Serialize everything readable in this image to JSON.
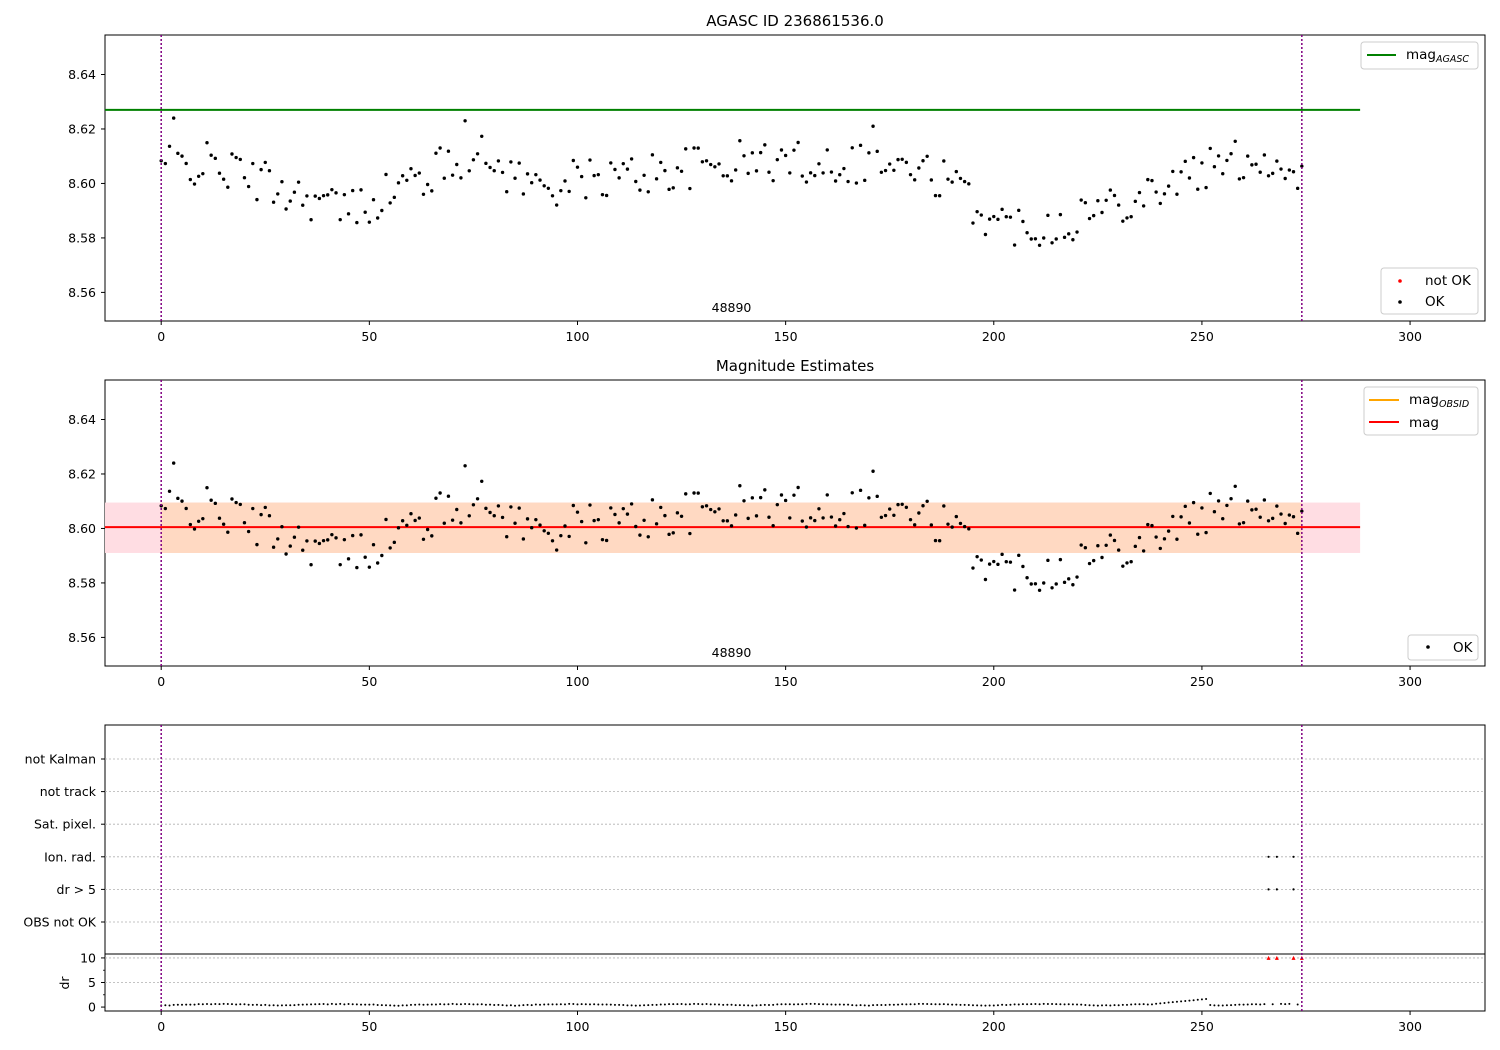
{
  "chart_data": [
    {
      "type": "scatter",
      "title": "AGASC ID 236861536.0",
      "obsid_label": "48890",
      "xlim": [
        -13.5,
        318
      ],
      "ylim": [
        8.5495,
        8.6545
      ],
      "x_ticks": [
        0,
        50,
        100,
        150,
        200,
        250,
        300
      ],
      "y_ticks": [
        8.56,
        8.58,
        8.6,
        8.62,
        8.64
      ],
      "y_tick_labels": [
        "8.56",
        "8.58",
        "8.60",
        "8.62",
        "8.64"
      ],
      "vlines": [
        0,
        274
      ],
      "mag_agasc": 8.627,
      "hline_x_range": [
        -13.5,
        288
      ],
      "legend_top": {
        "label_main": "mag",
        "label_sub": "AGASC"
      },
      "legend_bottom": [
        {
          "label": "not OK",
          "color": "#ff0000"
        },
        {
          "label": "OK",
          "color": "#000000"
        }
      ],
      "colors": {
        "agasc": "#008000",
        "vline": "#800080",
        "ok": "#000000",
        "not_ok": "#ff0000"
      }
    },
    {
      "type": "scatter",
      "title": "Magnitude Estimates",
      "obsid_label": "48890",
      "xlim": [
        -13.5,
        318
      ],
      "ylim": [
        8.5495,
        8.6545
      ],
      "x_ticks": [
        0,
        50,
        100,
        150,
        200,
        250,
        300
      ],
      "y_ticks": [
        8.56,
        8.58,
        8.6,
        8.62,
        8.64
      ],
      "y_tick_labels": [
        "8.56",
        "8.58",
        "8.60",
        "8.62",
        "8.64"
      ],
      "vlines": [
        0,
        274
      ],
      "mag_mean": 8.6005,
      "mag_band": [
        8.591,
        8.6095
      ],
      "obsid_band_x_range": [
        0,
        274
      ],
      "mag_band_x_range": [
        -13.5,
        288
      ],
      "legend_top": [
        {
          "label_main": "mag",
          "label_sub": "OBSID",
          "color": "#ffa500"
        },
        {
          "label_main": "mag",
          "label_sub": "",
          "color": "#ff0000"
        }
      ],
      "legend_bottom": [
        {
          "label": "OK",
          "color": "#000000"
        }
      ],
      "colors": {
        "mean": "#ff0000",
        "band_outer": "#ffdde3",
        "band_inner": "#ffd9c2",
        "vline": "#800080"
      }
    },
    {
      "type": "scatter",
      "title": "",
      "xlim": [
        -13.5,
        318
      ],
      "x_ticks": [
        0,
        50,
        100,
        150,
        200,
        250,
        300
      ],
      "flag_categories": [
        "not Kalman",
        "not track",
        "Sat. pixel.",
        "Ion. rad.",
        "dr > 5",
        "OBS not OK"
      ],
      "flag_points": {
        "Ion. rad.": [
          266,
          268,
          272
        ],
        "dr > 5": [
          266,
          268,
          272
        ]
      },
      "dr_ylabel": "dr",
      "dr_ylim": [
        -0.8,
        10.8
      ],
      "dr_ticks": [
        0,
        5,
        10
      ],
      "dr_tick_labels": [
        "0",
        "5",
        "10"
      ],
      "dr_clip": 10,
      "dr_clipped_x": [
        266,
        268,
        272,
        274
      ],
      "dr_clipped_color": "#ff0000",
      "vlines": [
        0,
        274
      ]
    }
  ]
}
